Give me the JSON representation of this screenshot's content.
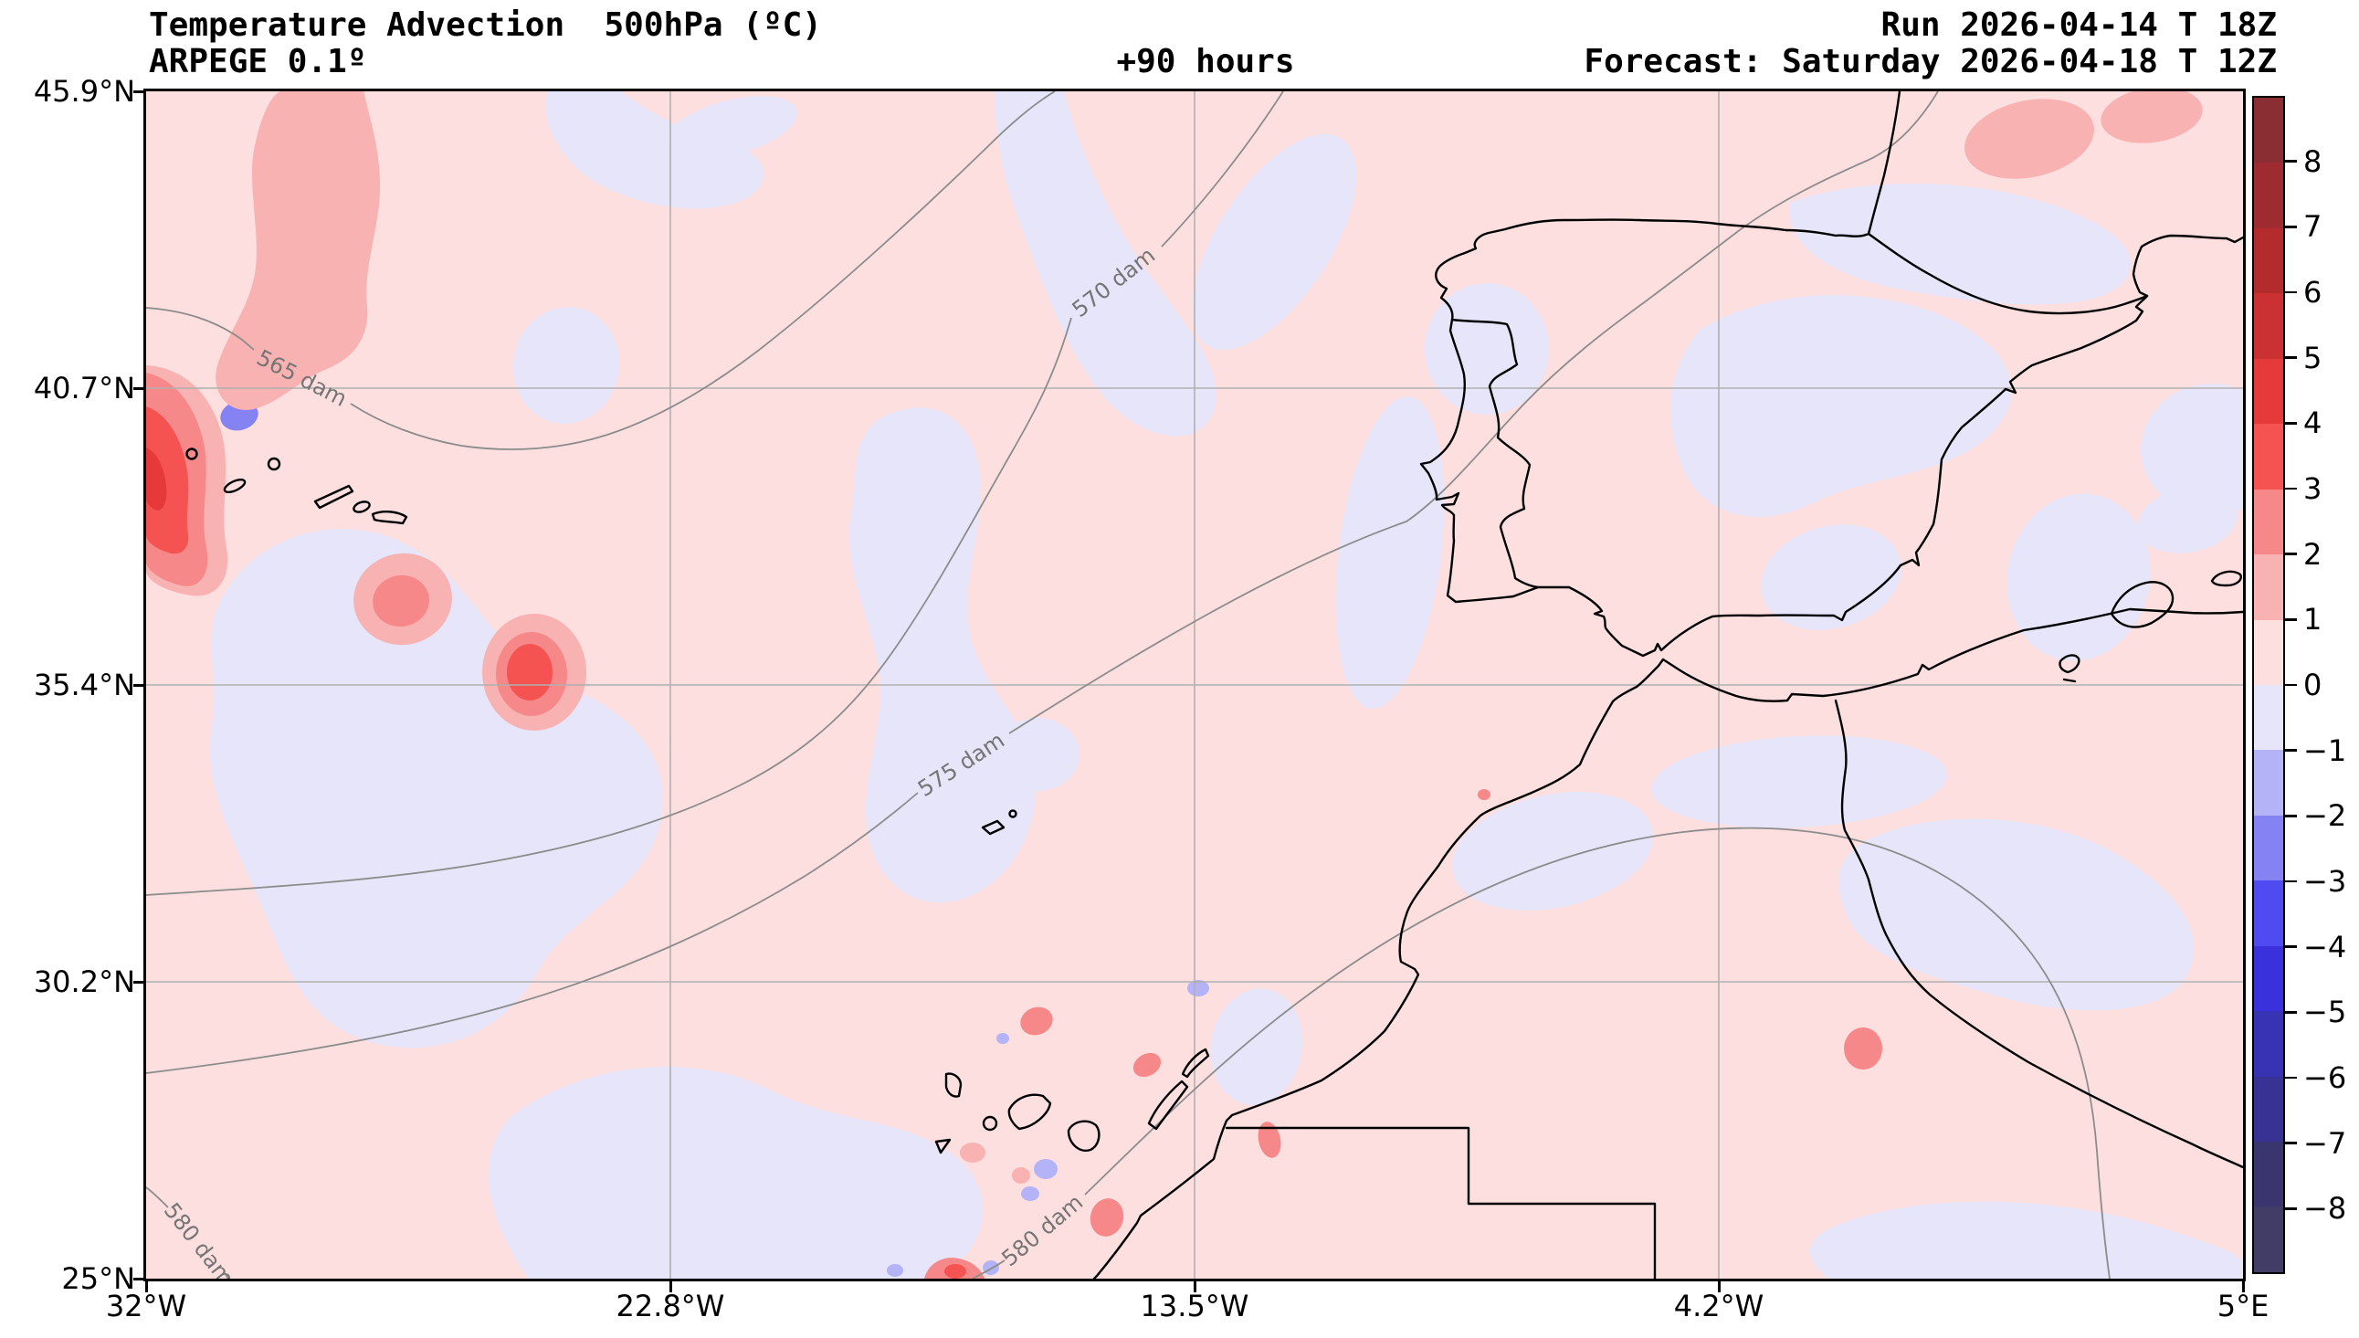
{
  "header": {
    "title": "Temperature Advection  500hPa (ºC)",
    "model": "ARPEGE 0.1º",
    "lead_time": "+90 hours",
    "run": "Run 2026-04-14 T 18Z",
    "valid": "Forecast: Saturday 2026-04-18 T 12Z"
  },
  "axes": {
    "y_ticks": [
      "45.9°N",
      "40.7°N",
      "35.4°N",
      "30.2°N",
      "25°N"
    ],
    "x_ticks": [
      "32°W",
      "22.8°W",
      "13.5°W",
      "4.2°W",
      "5°E"
    ]
  },
  "colorbar": {
    "tick_labels": [
      "8",
      "7",
      "6",
      "5",
      "4",
      "3",
      "2",
      "1",
      "0",
      "−1",
      "−2",
      "−3",
      "−4",
      "−5",
      "−6",
      "−7",
      "−8"
    ],
    "segments": [
      "#8b2e33",
      "#9e2b2f",
      "#b42b2d",
      "#cb3032",
      "#e53a39",
      "#f45351",
      "#f68889",
      "#f9b2b2",
      "#fcdfde",
      "#e6e5fa",
      "#b5b3f7",
      "#8583f4",
      "#4e4bf0",
      "#3a30dc",
      "#3833b4",
      "#373293",
      "#3a356f",
      "#423d66"
    ]
  },
  "map": {
    "contour_labels": [
      "565 dam",
      "570 dam",
      "575 dam",
      "580 dam",
      "580 dam"
    ]
  },
  "chart_data": {
    "type": "heatmap",
    "title": "Temperature Advection  500hPa (ºC)",
    "model": "ARPEGE 0.1º",
    "run": "Run 2026-04-14 T 18Z",
    "forecast_valid": "Saturday 2026-04-18 T 12Z",
    "lead_hours": 90,
    "variable": "temperature advection",
    "level_hPa": 500,
    "units": "ºC",
    "projection": "PlateCarree lat/lon map",
    "x_axis": {
      "tick_labels": [
        "32°W",
        "22.8°W",
        "13.5°W",
        "4.2°W",
        "5°E"
      ],
      "range_deg_lon": [
        -32,
        5
      ]
    },
    "y_axis": {
      "tick_labels": [
        "45.9°N",
        "40.7°N",
        "35.4°N",
        "30.2°N",
        "25°N"
      ],
      "range_deg_lat": [
        25,
        45.9
      ]
    },
    "grid": true,
    "colorbar": {
      "position": "right",
      "levels": [
        -8,
        -7,
        -6,
        -5,
        -4,
        -3,
        -2,
        -1,
        0,
        1,
        2,
        3,
        4,
        5,
        6,
        7,
        8
      ],
      "segment_colors_top_to_bottom": [
        "#8b2e33",
        "#9e2b2f",
        "#b42b2d",
        "#cb3032",
        "#e53a39",
        "#f45351",
        "#f68889",
        "#f9b2b2",
        "#fcdfde",
        "#e6e5fa",
        "#b5b3f7",
        "#8583f4",
        "#4e4bf0",
        "#3a30dc",
        "#3833b4",
        "#373293",
        "#3a356f",
        "#423d66"
      ]
    },
    "overlay_contours": {
      "field": "geopotential height",
      "unit": "dam",
      "labeled_values": [
        565,
        570,
        575,
        580
      ]
    },
    "region": "Eastern North Atlantic, Iberian Peninsula, northwest Africa, Azores, Madeira, Canary and Balearic Islands",
    "field_summary": "Mostly weak warm advection (0 to 1 ºC) over the domain; stronger warm advection (1 to 5 ºC) along the far western edge near the Azores and in a patch south of the Azores; scattered weak cold advection (0 to −2 ºC, locally −3 ºC) bands over the mid-Atlantic, interior Iberia, the western Mediterranean, Algeria and around the Canary Islands"
  }
}
